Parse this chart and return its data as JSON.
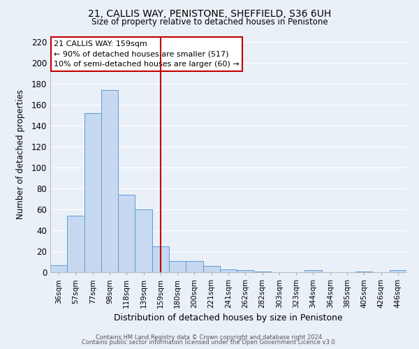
{
  "title1": "21, CALLIS WAY, PENISTONE, SHEFFIELD, S36 6UH",
  "title2": "Size of property relative to detached houses in Penistone",
  "xlabel": "Distribution of detached houses by size in Penistone",
  "ylabel": "Number of detached properties",
  "bar_labels": [
    "36sqm",
    "57sqm",
    "77sqm",
    "98sqm",
    "118sqm",
    "139sqm",
    "159sqm",
    "180sqm",
    "200sqm",
    "221sqm",
    "241sqm",
    "262sqm",
    "282sqm",
    "303sqm",
    "323sqm",
    "344sqm",
    "364sqm",
    "385sqm",
    "405sqm",
    "426sqm",
    "446sqm"
  ],
  "bar_values": [
    7,
    54,
    152,
    174,
    74,
    60,
    25,
    11,
    11,
    6,
    3,
    2,
    1,
    0,
    0,
    2,
    0,
    0,
    1,
    0,
    2
  ],
  "bar_color": "#c6d9f0",
  "bar_edge_color": "#5b9bd5",
  "vline_x": 6,
  "vline_color": "#c00000",
  "annotation_title": "21 CALLIS WAY: 159sqm",
  "annotation_line1": "← 90% of detached houses are smaller (517)",
  "annotation_line2": "10% of semi-detached houses are larger (60) →",
  "annotation_box_color": "#c00000",
  "ylim": [
    0,
    225
  ],
  "yticks": [
    0,
    20,
    40,
    60,
    80,
    100,
    120,
    140,
    160,
    180,
    200,
    220
  ],
  "footer1": "Contains HM Land Registry data © Crown copyright and database right 2024.",
  "footer2": "Contains public sector information licensed under the Open Government Licence v3.0.",
  "bg_color": "#eaf0f8",
  "grid_color": "#ffffff"
}
